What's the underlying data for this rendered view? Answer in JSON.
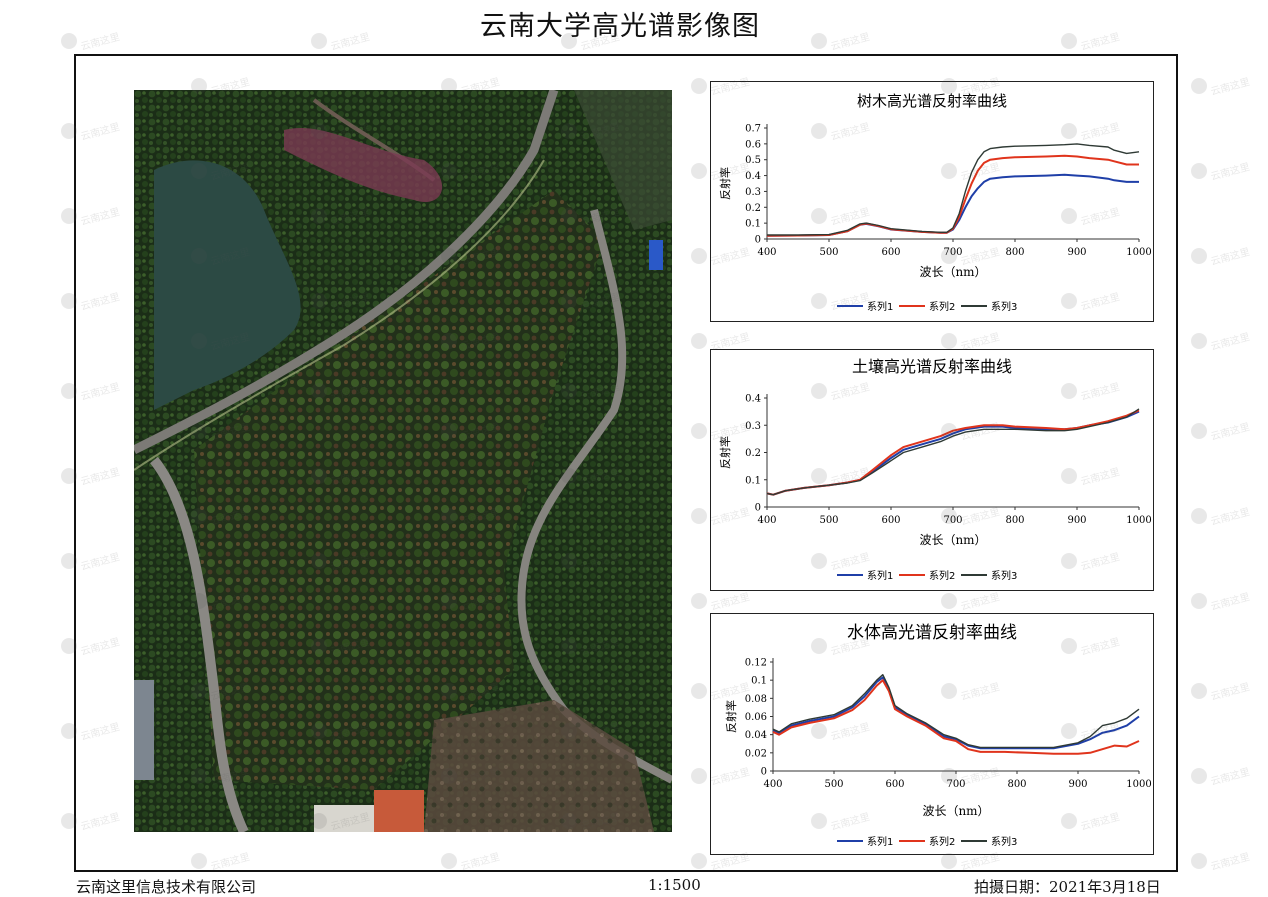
{
  "page": {
    "title": "云南大学高光谱影像图",
    "footer_left": "云南这里信息技术有限公司",
    "footer_center": "1:1500",
    "footer_right": "拍摄日期：2021年3月18日",
    "watermark_text": "云南这里"
  },
  "colors": {
    "series1": "#1f3fa8",
    "series2": "#e0341c",
    "series3": "#2f3a35",
    "frame": "#111111"
  },
  "chart_data": [
    {
      "type": "line",
      "title": "树木高光谱反射率曲线",
      "xlabel": "波长（nm）",
      "ylabel": "反射率",
      "xlim": [
        400,
        1000
      ],
      "ylim": [
        0,
        0.7
      ],
      "xticks": [
        400,
        500,
        600,
        700,
        800,
        900,
        1000
      ],
      "yticks": [
        "0",
        "0.1",
        "0.2",
        "0.3",
        "0.4",
        "0.5",
        "0.6",
        "0.7"
      ],
      "legend_position": "bottom",
      "series": [
        {
          "name": "系列1",
          "color_key": "series1",
          "x": [
            400,
            450,
            500,
            530,
            550,
            560,
            580,
            600,
            650,
            680,
            690,
            700,
            710,
            720,
            730,
            740,
            750,
            760,
            780,
            800,
            850,
            880,
            900,
            920,
            950,
            960,
            980,
            1000
          ],
          "y": [
            0.02,
            0.022,
            0.025,
            0.05,
            0.09,
            0.095,
            0.08,
            0.06,
            0.045,
            0.04,
            0.04,
            0.06,
            0.12,
            0.2,
            0.27,
            0.32,
            0.36,
            0.38,
            0.39,
            0.395,
            0.4,
            0.405,
            0.4,
            0.395,
            0.38,
            0.37,
            0.36,
            0.36
          ]
        },
        {
          "name": "系列2",
          "color_key": "series2",
          "x": [
            400,
            450,
            500,
            530,
            550,
            560,
            580,
            600,
            650,
            680,
            690,
            700,
            710,
            720,
            730,
            740,
            750,
            760,
            780,
            800,
            850,
            880,
            900,
            920,
            950,
            960,
            980,
            1000
          ],
          "y": [
            0.02,
            0.022,
            0.025,
            0.05,
            0.09,
            0.098,
            0.082,
            0.062,
            0.045,
            0.04,
            0.04,
            0.065,
            0.14,
            0.25,
            0.35,
            0.43,
            0.48,
            0.5,
            0.51,
            0.515,
            0.52,
            0.525,
            0.52,
            0.51,
            0.5,
            0.49,
            0.47,
            0.47
          ]
        },
        {
          "name": "系列3",
          "color_key": "series3",
          "x": [
            400,
            450,
            500,
            530,
            550,
            560,
            580,
            600,
            650,
            680,
            690,
            700,
            710,
            720,
            730,
            740,
            750,
            760,
            780,
            800,
            850,
            880,
            900,
            920,
            950,
            960,
            980,
            1000
          ],
          "y": [
            0.025,
            0.025,
            0.028,
            0.055,
            0.095,
            0.1,
            0.085,
            0.065,
            0.048,
            0.042,
            0.042,
            0.07,
            0.16,
            0.3,
            0.42,
            0.5,
            0.55,
            0.57,
            0.58,
            0.585,
            0.59,
            0.595,
            0.6,
            0.59,
            0.58,
            0.56,
            0.54,
            0.55
          ]
        }
      ]
    },
    {
      "type": "line",
      "title": "土壤高光谱反射率曲线",
      "xlabel": "波长（nm）",
      "ylabel": "反射率",
      "xlim": [
        400,
        1000
      ],
      "ylim": [
        0,
        0.4
      ],
      "xticks": [
        400,
        500,
        600,
        700,
        800,
        900,
        1000
      ],
      "yticks": [
        "0",
        "0.1",
        "0.2",
        "0.3",
        "0.4"
      ],
      "legend_position": "bottom",
      "series": [
        {
          "name": "系列1",
          "color_key": "series1",
          "x": [
            400,
            410,
            430,
            460,
            500,
            530,
            550,
            570,
            600,
            620,
            650,
            680,
            700,
            720,
            750,
            780,
            800,
            850,
            880,
            900,
            920,
            950,
            980,
            1000
          ],
          "y": [
            0.05,
            0.045,
            0.06,
            0.07,
            0.08,
            0.09,
            0.1,
            0.13,
            0.18,
            0.21,
            0.23,
            0.25,
            0.27,
            0.285,
            0.295,
            0.295,
            0.29,
            0.285,
            0.285,
            0.29,
            0.3,
            0.31,
            0.33,
            0.35
          ]
        },
        {
          "name": "系列2",
          "color_key": "series2",
          "x": [
            400,
            410,
            430,
            460,
            500,
            530,
            550,
            570,
            600,
            620,
            650,
            680,
            700,
            720,
            750,
            780,
            800,
            850,
            880,
            900,
            920,
            950,
            980,
            1000
          ],
          "y": [
            0.05,
            0.045,
            0.06,
            0.07,
            0.08,
            0.09,
            0.1,
            0.135,
            0.19,
            0.22,
            0.24,
            0.26,
            0.28,
            0.29,
            0.3,
            0.3,
            0.295,
            0.29,
            0.285,
            0.29,
            0.3,
            0.315,
            0.335,
            0.355
          ]
        },
        {
          "name": "系列3",
          "color_key": "series3",
          "x": [
            400,
            410,
            430,
            460,
            500,
            530,
            550,
            570,
            600,
            620,
            650,
            680,
            700,
            720,
            750,
            780,
            800,
            850,
            880,
            900,
            920,
            950,
            980,
            1000
          ],
          "y": [
            0.05,
            0.045,
            0.06,
            0.07,
            0.08,
            0.088,
            0.097,
            0.125,
            0.17,
            0.2,
            0.22,
            0.24,
            0.26,
            0.275,
            0.285,
            0.285,
            0.285,
            0.28,
            0.28,
            0.285,
            0.295,
            0.31,
            0.33,
            0.36
          ]
        }
      ]
    },
    {
      "type": "line",
      "title": "水体高光谱反射率曲线",
      "xlabel": "波长（nm）",
      "ylabel": "反射率",
      "xlim": [
        400,
        1000
      ],
      "ylim": [
        0,
        0.12
      ],
      "xticks": [
        400,
        500,
        600,
        700,
        800,
        900,
        1000
      ],
      "yticks": [
        "0",
        "0.02",
        "0.04",
        "0.06",
        "0.08",
        "0.1",
        "0.12"
      ],
      "legend_position": "bottom",
      "series": [
        {
          "name": "系列1",
          "color_key": "series1",
          "x": [
            400,
            410,
            430,
            460,
            500,
            530,
            550,
            570,
            580,
            590,
            600,
            620,
            650,
            680,
            700,
            720,
            740,
            780,
            820,
            860,
            900,
            920,
            940,
            960,
            980,
            1000
          ],
          "y": [
            0.045,
            0.042,
            0.05,
            0.055,
            0.06,
            0.07,
            0.082,
            0.098,
            0.103,
            0.09,
            0.07,
            0.062,
            0.052,
            0.038,
            0.035,
            0.028,
            0.025,
            0.025,
            0.025,
            0.025,
            0.03,
            0.035,
            0.042,
            0.045,
            0.05,
            0.06
          ]
        },
        {
          "name": "系列2",
          "color_key": "series2",
          "x": [
            400,
            410,
            430,
            460,
            500,
            530,
            550,
            570,
            580,
            590,
            600,
            620,
            650,
            680,
            700,
            720,
            740,
            780,
            820,
            860,
            900,
            920,
            940,
            960,
            980,
            1000
          ],
          "y": [
            0.043,
            0.04,
            0.048,
            0.053,
            0.058,
            0.067,
            0.078,
            0.094,
            0.1,
            0.088,
            0.068,
            0.06,
            0.05,
            0.036,
            0.033,
            0.024,
            0.021,
            0.021,
            0.02,
            0.019,
            0.019,
            0.02,
            0.024,
            0.028,
            0.027,
            0.033
          ]
        },
        {
          "name": "系列3",
          "color_key": "series3",
          "x": [
            400,
            410,
            430,
            460,
            500,
            530,
            550,
            570,
            580,
            590,
            600,
            620,
            650,
            680,
            700,
            720,
            740,
            780,
            820,
            860,
            900,
            920,
            940,
            960,
            980,
            1000
          ],
          "y": [
            0.046,
            0.043,
            0.052,
            0.057,
            0.062,
            0.072,
            0.085,
            0.1,
            0.106,
            0.092,
            0.072,
            0.063,
            0.053,
            0.04,
            0.036,
            0.029,
            0.026,
            0.026,
            0.026,
            0.026,
            0.031,
            0.038,
            0.05,
            0.053,
            0.058,
            0.068
          ]
        }
      ]
    }
  ]
}
